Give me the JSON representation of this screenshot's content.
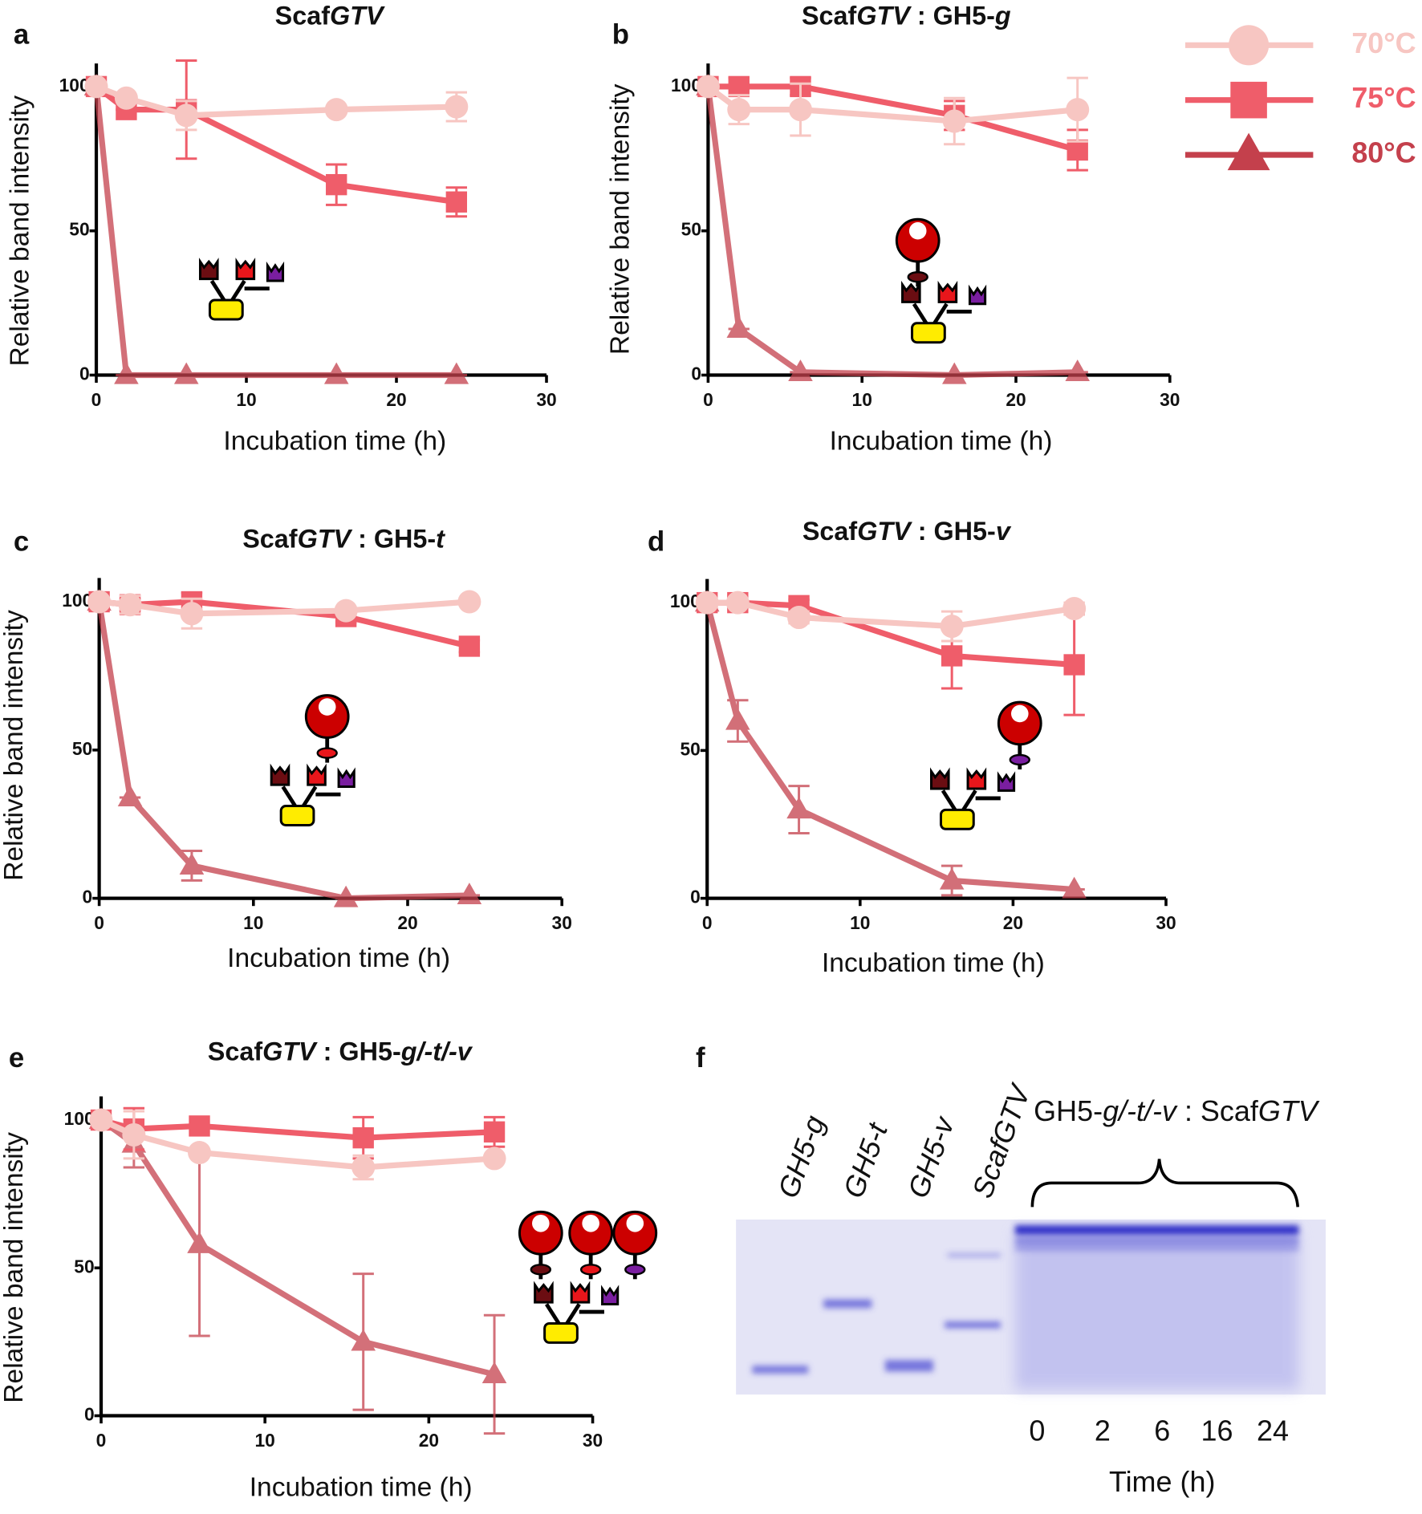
{
  "chart_data": [
    {
      "type": "line",
      "panel_label": "a",
      "title": [
        {
          "text": "Scaf"
        },
        {
          "text": "GTV",
          "italic": true
        }
      ],
      "x_label": "Incubation time (h)",
      "y_label": "Relative band intensity",
      "x": [
        0,
        2,
        6,
        16,
        24
      ],
      "xlim": [
        0,
        30
      ],
      "xticks": [
        0,
        10,
        20,
        30
      ],
      "ylim": [
        0,
        108
      ],
      "yticks": [
        0,
        50,
        100
      ],
      "series": [
        {
          "name": "70°C",
          "color": "#f7c6c2",
          "marker": "circle",
          "values": [
            100,
            96,
            90,
            92,
            93
          ],
          "errors": [
            0,
            0,
            5,
            0,
            5
          ]
        },
        {
          "name": "75°C",
          "color": "#ef5d6a",
          "marker": "square",
          "values": [
            100,
            92,
            92,
            66,
            60
          ],
          "errors": [
            0,
            0,
            17,
            7,
            5
          ]
        },
        {
          "name": "80°C",
          "color": "#c4404c",
          "marker": "triangle",
          "values": [
            100,
            0,
            0,
            0,
            0
          ],
          "errors": [
            0,
            0,
            0,
            0,
            0
          ]
        }
      ]
    },
    {
      "type": "line",
      "panel_label": "b",
      "title": [
        {
          "text": "Scaf"
        },
        {
          "text": "GTV",
          "italic": true
        },
        {
          "text": " : GH5-"
        },
        {
          "text": "g",
          "italic": true
        }
      ],
      "x_label": "Incubation time (h)",
      "y_label": "Relative band intensity",
      "x": [
        0,
        2,
        6,
        16,
        24
      ],
      "xlim": [
        0,
        30
      ],
      "xticks": [
        0,
        10,
        20,
        30
      ],
      "ylim": [
        0,
        108
      ],
      "yticks": [
        0,
        50,
        100
      ],
      "series": [
        {
          "color": "#f7c6c2",
          "marker": "circle",
          "values": [
            100,
            92,
            92,
            88,
            92
          ],
          "errors": [
            0,
            5,
            9,
            8,
            11
          ]
        },
        {
          "color": "#ef5d6a",
          "marker": "square",
          "values": [
            100,
            100,
            100,
            90,
            78
          ],
          "errors": [
            0,
            3,
            3,
            5,
            7
          ]
        },
        {
          "color": "#c4404c",
          "marker": "triangle",
          "values": [
            100,
            16,
            1,
            0,
            1
          ],
          "errors": [
            0,
            0,
            0,
            0,
            0
          ]
        }
      ]
    },
    {
      "type": "line",
      "panel_label": "c",
      "title": [
        {
          "text": "Scaf"
        },
        {
          "text": "GTV",
          "italic": true
        },
        {
          "text": " : GH5-"
        },
        {
          "text": "t",
          "italic": true
        }
      ],
      "x_label": "Incubation time (h)",
      "y_label": "Relative band intensity",
      "x": [
        0,
        2,
        6,
        16,
        24
      ],
      "xlim": [
        0,
        30
      ],
      "xticks": [
        0,
        10,
        20,
        30
      ],
      "ylim": [
        0,
        108
      ],
      "yticks": [
        0,
        50,
        100
      ],
      "series": [
        {
          "color": "#f7c6c2",
          "marker": "circle",
          "values": [
            100,
            99,
            96,
            97,
            100
          ],
          "errors": [
            0,
            3,
            5,
            0,
            0
          ]
        },
        {
          "color": "#ef5d6a",
          "marker": "square",
          "values": [
            100,
            99,
            100,
            95,
            85
          ],
          "errors": [
            0,
            2,
            3,
            2,
            2
          ]
        },
        {
          "color": "#c4404c",
          "marker": "triangle",
          "values": [
            100,
            34,
            11,
            0,
            1
          ],
          "errors": [
            0,
            0,
            5,
            0,
            0
          ]
        }
      ]
    },
    {
      "type": "line",
      "panel_label": "d",
      "title": [
        {
          "text": "Scaf"
        },
        {
          "text": "GTV",
          "italic": true
        },
        {
          "text": " : GH5-"
        },
        {
          "text": "v",
          "italic": true
        }
      ],
      "x_label": "Incubation time (h)",
      "x": [
        0,
        2,
        6,
        16,
        24
      ],
      "xlim": [
        0,
        30
      ],
      "xticks": [
        0,
        10,
        20,
        30
      ],
      "ylim": [
        0,
        108
      ],
      "yticks": [
        0,
        50,
        100
      ],
      "series": [
        {
          "color": "#f7c6c2",
          "marker": "circle",
          "values": [
            100,
            100,
            95,
            92,
            98
          ],
          "errors": [
            0,
            0,
            2,
            5,
            2
          ]
        },
        {
          "color": "#ef5d6a",
          "marker": "square",
          "values": [
            100,
            100,
            99,
            82,
            79
          ],
          "errors": [
            0,
            0,
            2,
            11,
            17
          ]
        },
        {
          "color": "#c4404c",
          "marker": "triangle",
          "values": [
            100,
            60,
            30,
            6,
            3
          ],
          "errors": [
            0,
            7,
            8,
            5,
            0
          ]
        }
      ]
    },
    {
      "type": "line",
      "panel_label": "e",
      "title": [
        {
          "text": "Scaf"
        },
        {
          "text": "GTV",
          "italic": true
        },
        {
          "text": " : GH5-"
        },
        {
          "text": "g/-t/-v",
          "italic": true
        }
      ],
      "x_label": "Incubation time (h)",
      "y_label": "Relative band intensity",
      "x": [
        0,
        2,
        6,
        16,
        24
      ],
      "xlim": [
        0,
        30
      ],
      "xticks": [
        0,
        10,
        20,
        30
      ],
      "ylim": [
        0,
        108
      ],
      "yticks": [
        0,
        50,
        100
      ],
      "series": [
        {
          "color": "#f7c6c2",
          "marker": "circle",
          "values": [
            100,
            95,
            89,
            84,
            87
          ],
          "errors": [
            0,
            8,
            0,
            4,
            0
          ]
        },
        {
          "color": "#ef5d6a",
          "marker": "square",
          "values": [
            100,
            97,
            98,
            94,
            96
          ],
          "errors": [
            0,
            7,
            0,
            7,
            5
          ]
        },
        {
          "color": "#c4404c",
          "marker": "triangle",
          "values": [
            100,
            92,
            58,
            25,
            14
          ],
          "errors": [
            0,
            8,
            31,
            23,
            20
          ]
        }
      ]
    }
  ],
  "gel": {
    "panel_label": "f",
    "lanes": [
      "GH5-g",
      "GH5-t",
      "GH5-v",
      "ScafGTV"
    ],
    "header": [
      {
        "text": "GH5-"
      },
      {
        "text": "g/-t/-v",
        "italic": true
      },
      {
        "text": " : Scaf"
      },
      {
        "text": "GTV",
        "italic": true
      }
    ],
    "time_labels": [
      "0",
      "2",
      "6",
      "16",
      "24"
    ],
    "time_axis_label": "Time (h)"
  }
}
